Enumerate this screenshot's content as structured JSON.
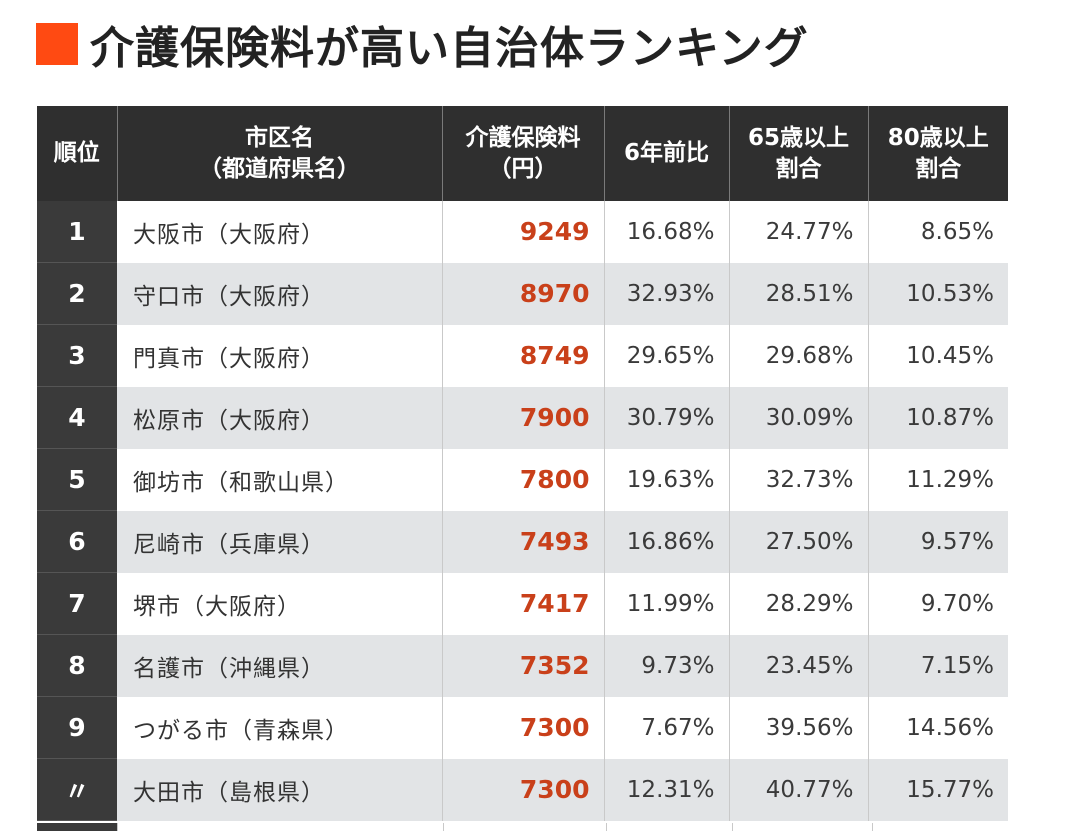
{
  "title": "介護保険料が高い自治体ランキング",
  "colors": {
    "accent": "#ff4a12",
    "header_bg": "#2f2f2f",
    "fee_text": "#c9401a",
    "stripe": "#e2e4e6"
  },
  "table": {
    "headers": {
      "rank": "順位",
      "city_line1": "市区名",
      "city_line2": "（都道府県名）",
      "fee_line1": "介護保険料",
      "fee_line2": "（円）",
      "change": "6年前比",
      "age65_line1": "65歳以上",
      "age65_line2": "割合",
      "age80_line1": "80歳以上",
      "age80_line2": "割合"
    },
    "rows": [
      {
        "rank": "1",
        "city": "大阪市（大阪府）",
        "fee": "9249",
        "change": "16.68%",
        "age65": "24.77%",
        "age80": "8.65%"
      },
      {
        "rank": "2",
        "city": "守口市（大阪府）",
        "fee": "8970",
        "change": "32.93%",
        "age65": "28.51%",
        "age80": "10.53%"
      },
      {
        "rank": "3",
        "city": "門真市（大阪府）",
        "fee": "8749",
        "change": "29.65%",
        "age65": "29.68%",
        "age80": "10.45%"
      },
      {
        "rank": "4",
        "city": "松原市（大阪府）",
        "fee": "7900",
        "change": "30.79%",
        "age65": "30.09%",
        "age80": "10.87%"
      },
      {
        "rank": "5",
        "city": "御坊市（和歌山県）",
        "fee": "7800",
        "change": "19.63%",
        "age65": "32.73%",
        "age80": "11.29%"
      },
      {
        "rank": "6",
        "city": "尼崎市（兵庫県）",
        "fee": "7493",
        "change": "16.86%",
        "age65": "27.50%",
        "age80": "9.57%"
      },
      {
        "rank": "7",
        "city": "堺市（大阪府）",
        "fee": "7417",
        "change": "11.99%",
        "age65": "28.29%",
        "age80": "9.70%"
      },
      {
        "rank": "8",
        "city": "名護市（沖縄県）",
        "fee": "7352",
        "change": "9.73%",
        "age65": "23.45%",
        "age80": "7.15%"
      },
      {
        "rank": "9",
        "city": "つがる市（青森県）",
        "fee": "7300",
        "change": "7.67%",
        "age65": "39.56%",
        "age80": "14.56%"
      },
      {
        "rank": "〃",
        "city": "大田市（島根県）",
        "fee": "7300",
        "change": "12.31%",
        "age65": "40.77%",
        "age80": "15.77%"
      }
    ]
  }
}
